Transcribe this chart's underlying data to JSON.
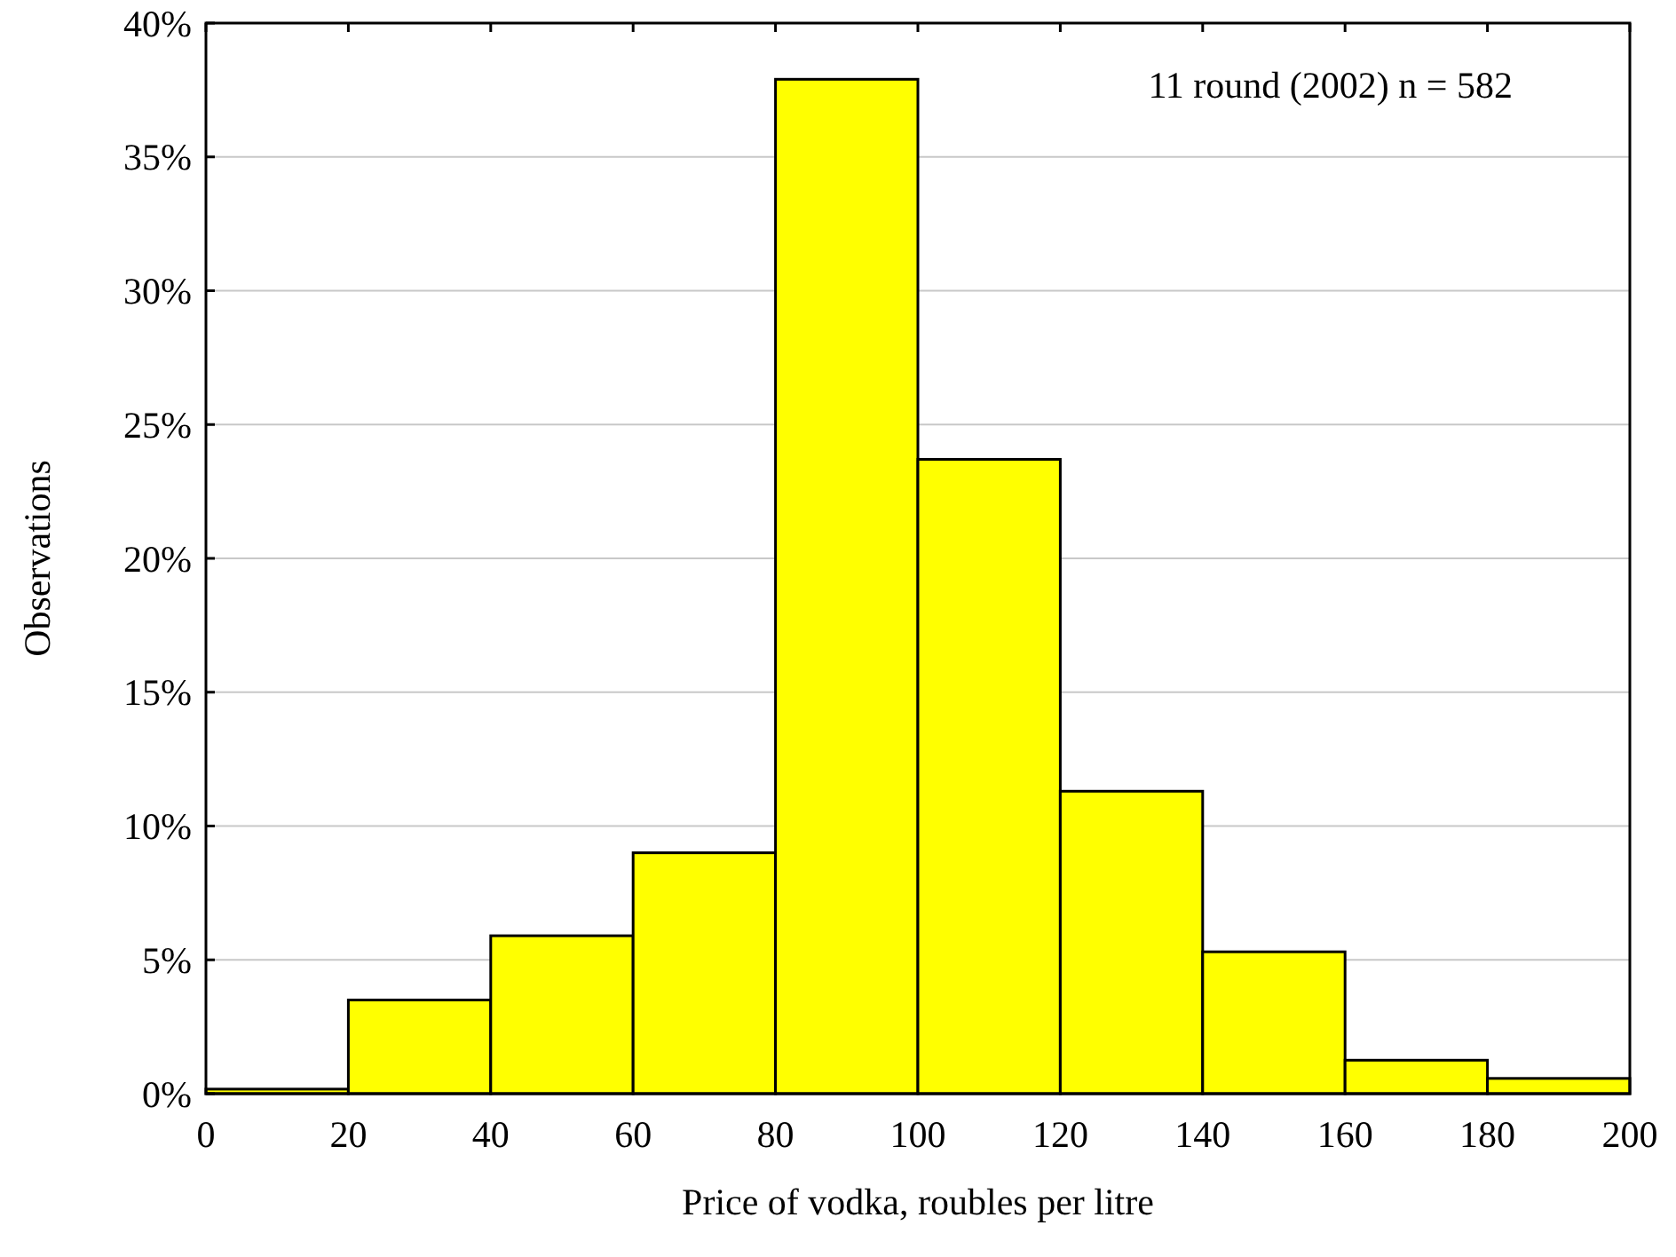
{
  "chart_data": {
    "type": "histogram",
    "xlabel": "Price of vodka, roubles per litre",
    "ylabel": "Observations",
    "annotations": [
      "11 round (2002) n = 582"
    ],
    "bins": [
      0,
      20,
      40,
      60,
      80,
      100,
      120,
      140,
      160,
      180,
      200
    ],
    "values": [
      0.17,
      3.5,
      5.9,
      9.0,
      37.9,
      23.7,
      11.3,
      5.3,
      1.25,
      0.57
    ],
    "color": "#ffff00",
    "xlim": [
      0,
      200
    ],
    "xticks": [
      0,
      20,
      40,
      60,
      80,
      100,
      120,
      140,
      160,
      180,
      200
    ],
    "ylim": [
      0,
      40
    ],
    "yticks": [
      {
        "value": 0,
        "label": "0%"
      },
      {
        "value": 5,
        "label": "5%"
      },
      {
        "value": 10,
        "label": "10%"
      },
      {
        "value": 15,
        "label": "15%"
      },
      {
        "value": 20,
        "label": "20%"
      },
      {
        "value": 25,
        "label": "25%"
      },
      {
        "value": 30,
        "label": "30%"
      },
      {
        "value": 35,
        "label": "35%"
      },
      {
        "value": 40,
        "label": "40%"
      }
    ],
    "grid": "y"
  }
}
